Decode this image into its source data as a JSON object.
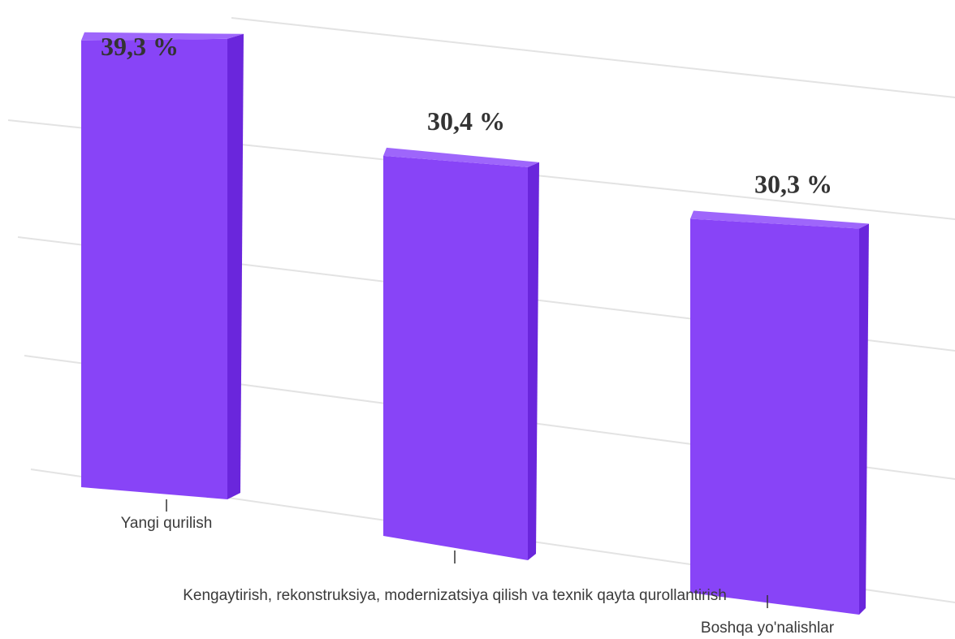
{
  "chart_data": {
    "type": "bar",
    "title": "",
    "categories": [
      "Yangi qurilish",
      "Kengaytirish, rekonstruksiya, modernizatsiya qilish va texnik qayta qurollantirish",
      "Boshqa yo'nalishlar"
    ],
    "values": [
      39.3,
      30.4,
      30.3
    ],
    "value_labels": [
      "39,3 %",
      "30,4 %",
      "30,3 %"
    ],
    "xlabel": "",
    "ylabel": "",
    "grid": true,
    "legend": "none",
    "style": "3d-perspective",
    "colors": {
      "bar_front": "#8844f7",
      "bar_side": "#6a26dc",
      "bar_top": "#9e66fb",
      "grid": "#e3e3e3"
    }
  }
}
